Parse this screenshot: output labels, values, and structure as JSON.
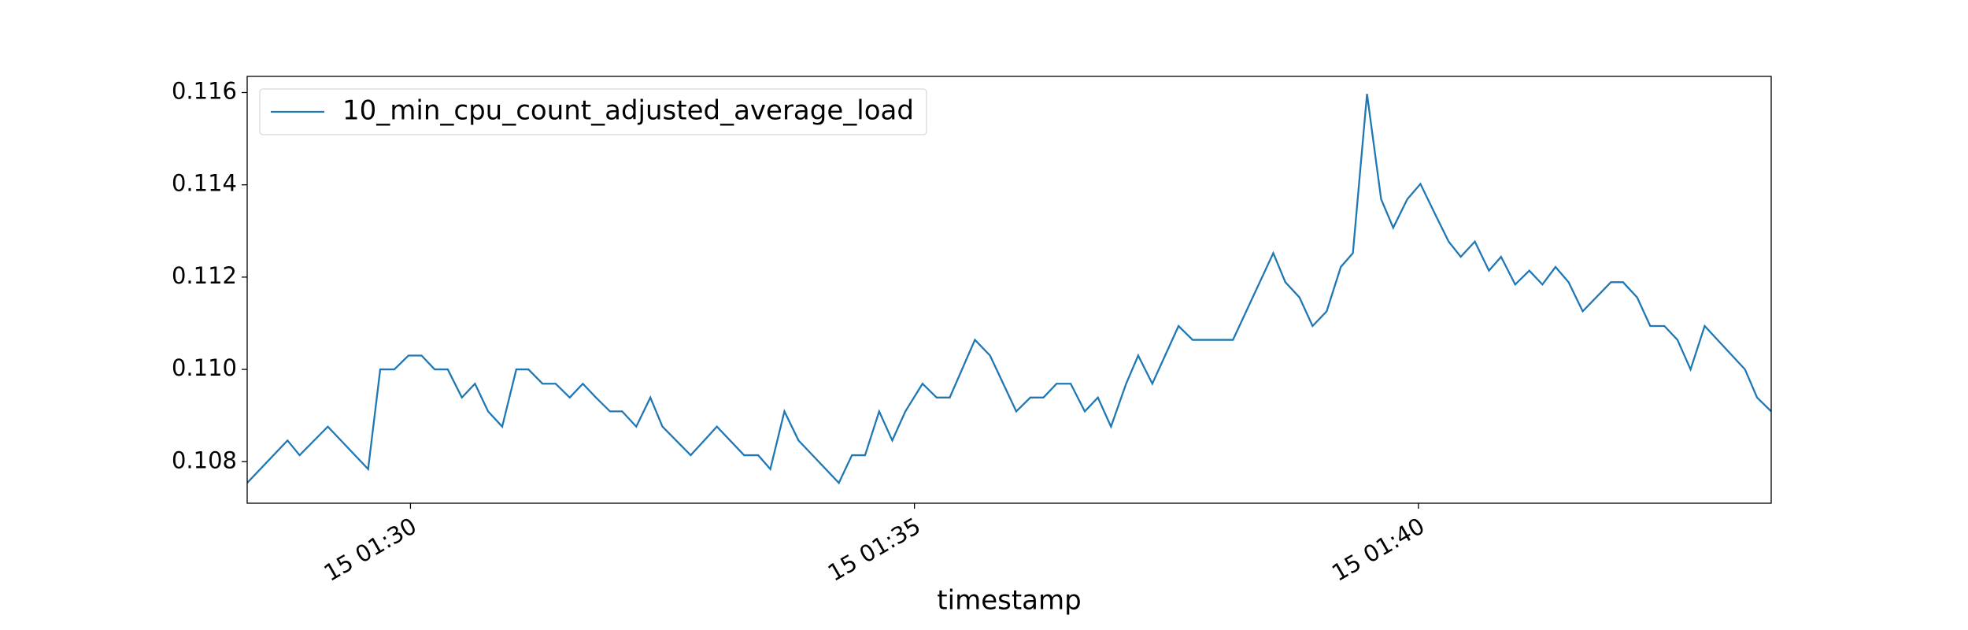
{
  "chart_data": {
    "type": "line",
    "xlabel": "timestamp",
    "x": [
      88.38,
      88.78,
      88.9,
      89.18,
      89.58,
      89.7,
      89.84,
      89.98,
      90.11,
      90.24,
      90.37,
      90.51,
      90.64,
      90.77,
      90.91,
      91.05,
      91.17,
      91.31,
      91.44,
      91.58,
      91.71,
      91.84,
      91.98,
      92.1,
      92.24,
      92.38,
      92.5,
      92.78,
      93.04,
      93.31,
      93.45,
      93.57,
      93.71,
      93.85,
      94.25,
      94.38,
      94.51,
      94.65,
      94.78,
      94.91,
      95.08,
      95.22,
      95.35,
      95.6,
      95.75,
      96.01,
      96.15,
      96.28,
      96.41,
      96.55,
      96.69,
      96.82,
      96.95,
      97.1,
      97.22,
      97.36,
      97.62,
      97.76,
      98.16,
      98.56,
      98.68,
      98.82,
      98.95,
      99.09,
      99.23,
      99.35,
      99.49,
      99.63,
      99.75,
      99.89,
      100.02,
      100.16,
      100.3,
      100.42,
      100.56,
      100.7,
      100.82,
      100.96,
      101.1,
      101.23,
      101.36,
      101.49,
      101.63,
      101.91,
      102.03,
      102.17,
      102.3,
      102.44,
      102.57,
      102.7,
      102.84,
      103.24,
      103.36,
      103.5
    ],
    "series": [
      {
        "name": "10_min_cpu_count_adjusted_average_load",
        "color": "#1f77b4",
        "values": [
          0.10754,
          0.10846,
          0.10814,
          0.10876,
          0.10784,
          0.11,
          0.11,
          0.1103,
          0.1103,
          0.11,
          0.11,
          0.10939,
          0.10969,
          0.10909,
          0.10876,
          0.11,
          0.11,
          0.10969,
          0.10969,
          0.10939,
          0.10969,
          0.10939,
          0.10909,
          0.10909,
          0.10876,
          0.10939,
          0.10876,
          0.10814,
          0.10876,
          0.10814,
          0.10814,
          0.10784,
          0.10909,
          0.10846,
          0.10754,
          0.10814,
          0.10814,
          0.10909,
          0.10846,
          0.10909,
          0.10969,
          0.10939,
          0.10939,
          0.11064,
          0.1103,
          0.10909,
          0.10939,
          0.10939,
          0.10969,
          0.10969,
          0.10909,
          0.10939,
          0.10876,
          0.10969,
          0.1103,
          0.10969,
          0.11094,
          0.11064,
          0.11064,
          0.11252,
          0.11189,
          0.11156,
          0.11094,
          0.11126,
          0.11222,
          0.11252,
          0.11597,
          0.11369,
          0.11307,
          0.11369,
          0.11402,
          0.11339,
          0.11277,
          0.11244,
          0.11277,
          0.11214,
          0.11244,
          0.11184,
          0.11214,
          0.11184,
          0.11222,
          0.11189,
          0.11126,
          0.11189,
          0.11189,
          0.11156,
          0.11094,
          0.11094,
          0.11064,
          0.11,
          0.11094,
          0.11,
          0.10939,
          0.10909
        ]
      }
    ],
    "xlim": [
      88.38,
      103.5
    ],
    "xticks": [
      {
        "value": 90,
        "label": "15 01:30"
      },
      {
        "value": 95,
        "label": "15 01:35"
      },
      {
        "value": 100,
        "label": "15 01:40"
      }
    ],
    "ylim": [
      0.1071,
      0.11635
    ],
    "yticks": [
      0.108,
      {
        "value": 0.11,
        "label": "0.110"
      },
      0.112,
      0.114,
      0.116
    ],
    "grid": false,
    "legend": "upper left"
  }
}
